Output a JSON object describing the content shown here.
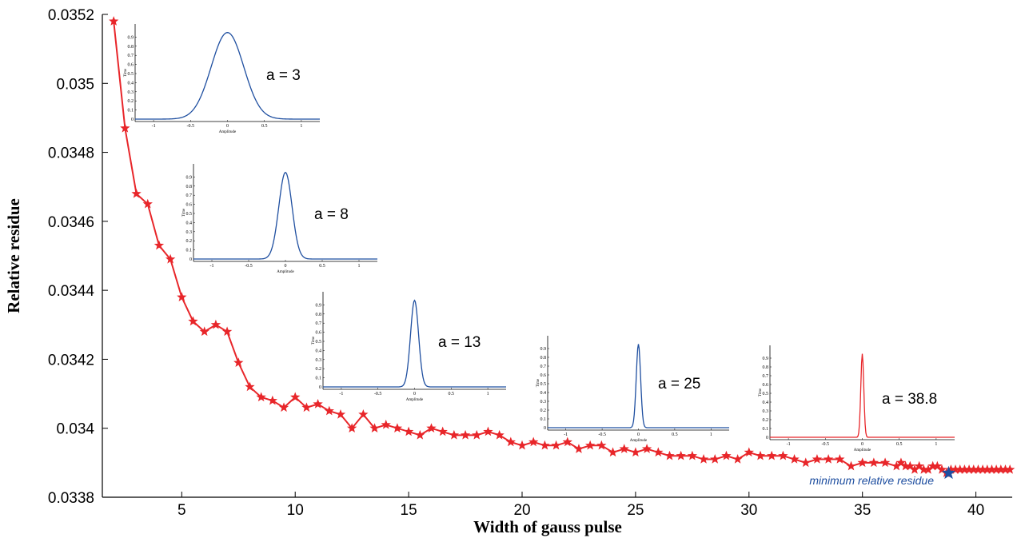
{
  "chart_data": {
    "type": "line",
    "xlabel": "Width of gauss pulse",
    "ylabel": "Relative residue",
    "xlim": [
      1.5,
      41.6
    ],
    "ylim": [
      0.0338,
      0.0352
    ],
    "xticks": [
      "5",
      "10",
      "15",
      "20",
      "25",
      "30",
      "35",
      "40"
    ],
    "yticks": [
      "0.0338",
      "0.034",
      "0.0342",
      "0.0344",
      "0.0346",
      "0.0348",
      "0.035",
      "0.0352"
    ],
    "series": [
      {
        "color": "#e8262a",
        "marker": "star",
        "x": [
          2,
          2.5,
          3,
          3.5,
          4,
          4.5,
          5,
          5.5,
          6,
          6.5,
          7,
          7.5,
          8,
          8.5,
          9,
          9.5,
          10,
          10.5,
          11,
          11.5,
          12,
          12.5,
          13,
          13.5,
          14,
          14.5,
          15,
          15.5,
          16,
          16.5,
          17,
          17.5,
          18,
          18.5,
          19,
          19.5,
          20,
          20.5,
          21,
          21.5,
          22,
          22.5,
          23,
          23.5,
          24,
          24.5,
          25,
          25.5,
          26,
          26.5,
          27,
          27.5,
          28,
          28.5,
          29,
          29.5,
          30,
          30.5,
          31,
          31.5,
          32,
          32.5,
          33,
          33.5,
          34,
          34.5,
          35,
          35.5,
          36,
          36.5,
          36.7,
          36.9,
          37.1,
          37.3,
          37.5,
          37.7,
          37.9,
          38.1,
          38.3,
          38.5,
          38.7,
          38.9,
          39.1,
          39.3,
          39.5,
          39.7,
          39.9,
          40.1,
          40.3,
          40.5,
          40.7,
          40.9,
          41.1,
          41.3,
          41.5
        ],
        "y": [
          0.03518,
          0.03487,
          0.03468,
          0.03465,
          0.03453,
          0.03449,
          0.03438,
          0.03431,
          0.03428,
          0.0343,
          0.03428,
          0.03419,
          0.03412,
          0.03409,
          0.03408,
          0.03406,
          0.03409,
          0.03406,
          0.03407,
          0.03405,
          0.03404,
          0.034,
          0.03404,
          0.034,
          0.03401,
          0.034,
          0.03399,
          0.03398,
          0.034,
          0.03399,
          0.03398,
          0.03398,
          0.03398,
          0.03399,
          0.03398,
          0.03396,
          0.03395,
          0.03396,
          0.03395,
          0.03395,
          0.03396,
          0.03394,
          0.03395,
          0.03395,
          0.03393,
          0.03394,
          0.03393,
          0.03394,
          0.03393,
          0.03392,
          0.03392,
          0.03392,
          0.03391,
          0.03391,
          0.03392,
          0.03391,
          0.03393,
          0.03392,
          0.03392,
          0.03392,
          0.03391,
          0.0339,
          0.03391,
          0.03391,
          0.03391,
          0.03389,
          0.0339,
          0.0339,
          0.0339,
          0.03389,
          0.0339,
          0.03389,
          0.03389,
          0.03388,
          0.03389,
          0.03388,
          0.03388,
          0.03389,
          0.03389,
          0.03388,
          0.03387,
          0.03388,
          0.03388,
          0.03388,
          0.03388,
          0.03388,
          0.03388,
          0.03388,
          0.03388,
          0.03388,
          0.03388,
          0.03388,
          0.03388,
          0.03388,
          0.03388
        ]
      }
    ],
    "minimum_point": {
      "x": 38.8,
      "y": 0.03387,
      "color": "#1f4fa0"
    },
    "annotation": "minimum relative residue",
    "insets": [
      {
        "label": "a = 3",
        "curve_color": "#1f4fa0",
        "sigma": 0.22,
        "peak": 0.95
      },
      {
        "label": "a = 8",
        "curve_color": "#1f4fa0",
        "sigma": 0.09,
        "peak": 0.95
      },
      {
        "label": "a = 13",
        "curve_color": "#1f4fa0",
        "sigma": 0.055,
        "peak": 0.95
      },
      {
        "label": "a = 25",
        "curve_color": "#1f4fa0",
        "sigma": 0.03,
        "peak": 0.95
      },
      {
        "label": "a = 38.8",
        "curve_color": "#e8262a",
        "sigma": 0.02,
        "peak": 0.95
      }
    ],
    "inset_xticks": [
      "-1",
      "-0.5",
      "0",
      "0.5",
      "1"
    ],
    "inset_yticks": [
      "0",
      "0.1",
      "0.2",
      "0.3",
      "0.4",
      "0.5",
      "0.6",
      "0.7",
      "0.8",
      "0.9"
    ],
    "inset_xlabel": "Amplitude",
    "inset_ylabel": "Time"
  }
}
